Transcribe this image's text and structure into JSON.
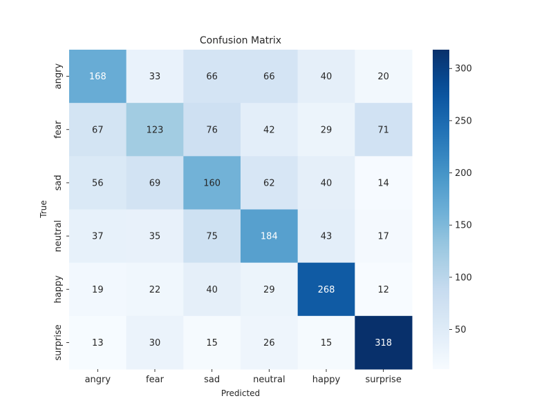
{
  "chart_data": {
    "type": "heatmap",
    "title": "Confusion Matrix",
    "xlabel": "Predicted",
    "ylabel": "True",
    "x_categories": [
      "angry",
      "fear",
      "sad",
      "neutral",
      "happy",
      "surprise"
    ],
    "y_categories": [
      "angry",
      "fear",
      "sad",
      "neutral",
      "happy",
      "surprise"
    ],
    "values": [
      [
        168,
        33,
        66,
        66,
        40,
        20
      ],
      [
        67,
        123,
        76,
        42,
        29,
        71
      ],
      [
        56,
        69,
        160,
        62,
        40,
        14
      ],
      [
        37,
        35,
        75,
        184,
        43,
        17
      ],
      [
        19,
        22,
        40,
        29,
        268,
        12
      ],
      [
        13,
        30,
        15,
        26,
        15,
        318
      ]
    ],
    "colorbar": {
      "min": 12,
      "max": 318,
      "ticks": [
        50,
        100,
        150,
        200,
        250,
        300
      ],
      "colormap": "Blues"
    },
    "annotations": true,
    "grid": false
  }
}
